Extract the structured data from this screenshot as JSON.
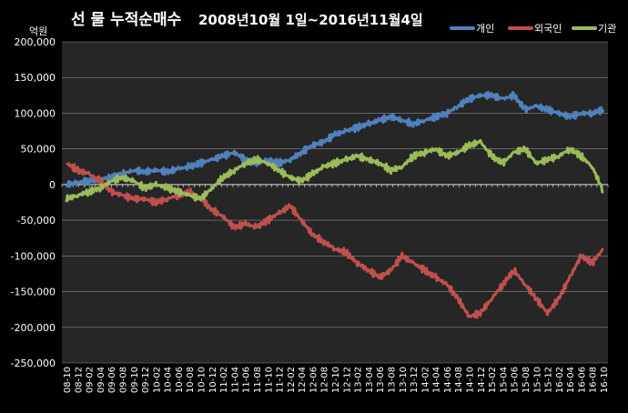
{
  "chart_data": {
    "type": "line",
    "title": "선 물 누적순매수",
    "subtitle": "2008년10월 1일~2016년11월4일",
    "unit_label": "억원",
    "ylim": [
      -250000,
      200000
    ],
    "y_ticks": [
      200000,
      150000,
      100000,
      50000,
      0,
      -50000,
      -100000,
      -150000,
      -200000,
      -250000
    ],
    "y_tick_labels": [
      "200,000",
      "150,000",
      "100,000",
      "50,000",
      "0",
      "-50,000",
      "-100,000",
      "-150,000",
      "-200,000",
      "-250,000"
    ],
    "grid": "horizontal",
    "legend_position": "top-right",
    "categories": [
      "08-10",
      "08-12",
      "09-02",
      "09-04",
      "09-06",
      "09-08",
      "09-10",
      "09-12",
      "10-02",
      "10-04",
      "10-06",
      "10-08",
      "10-10",
      "10-12",
      "11-02",
      "11-04",
      "11-06",
      "11-08",
      "11-10",
      "11-12",
      "12-02",
      "12-04",
      "12-06",
      "12-08",
      "12-10",
      "12-12",
      "13-02",
      "13-04",
      "13-06",
      "13-08",
      "13-10",
      "13-12",
      "14-02",
      "14-04",
      "14-06",
      "14-08",
      "14-10",
      "14-12",
      "15-02",
      "15-04",
      "15-06",
      "15-08",
      "15-10",
      "15-12",
      "16-02",
      "16-04",
      "16-06",
      "16-08",
      "16-10"
    ],
    "series": [
      {
        "name": "개인",
        "color": "#4F81BD",
        "values": [
          0,
          3000,
          5000,
          8000,
          10000,
          15000,
          20000,
          18000,
          20000,
          18000,
          22000,
          25000,
          30000,
          35000,
          40000,
          45000,
          35000,
          30000,
          35000,
          30000,
          35000,
          45000,
          55000,
          60000,
          70000,
          75000,
          80000,
          85000,
          90000,
          95000,
          90000,
          85000,
          90000,
          95000,
          100000,
          110000,
          120000,
          125000,
          125000,
          120000,
          125000,
          105000,
          110000,
          105000,
          100000,
          95000,
          100000,
          100000,
          105000
        ]
      },
      {
        "name": "외국인",
        "color": "#C0504D",
        "values": [
          30000,
          20000,
          15000,
          5000,
          -10000,
          -15000,
          -20000,
          -20000,
          -25000,
          -20000,
          -15000,
          -10000,
          -20000,
          -35000,
          -45000,
          -60000,
          -55000,
          -60000,
          -50000,
          -40000,
          -30000,
          -50000,
          -70000,
          -80000,
          -90000,
          -95000,
          -110000,
          -120000,
          -130000,
          -120000,
          -100000,
          -110000,
          -120000,
          -130000,
          -140000,
          -160000,
          -185000,
          -180000,
          -160000,
          -140000,
          -120000,
          -140000,
          -160000,
          -180000,
          -160000,
          -130000,
          -100000,
          -110000,
          -90000
        ]
      },
      {
        "name": "기관",
        "color": "#9BBB59",
        "values": [
          -20000,
          -15000,
          -10000,
          -5000,
          5000,
          10000,
          5000,
          -5000,
          0,
          -5000,
          -10000,
          -15000,
          -20000,
          -5000,
          10000,
          20000,
          30000,
          35000,
          30000,
          20000,
          10000,
          5000,
          15000,
          25000,
          30000,
          35000,
          40000,
          35000,
          30000,
          20000,
          25000,
          40000,
          45000,
          50000,
          40000,
          45000,
          55000,
          60000,
          40000,
          30000,
          45000,
          50000,
          30000,
          35000,
          40000,
          50000,
          40000,
          25000,
          -10000
        ]
      }
    ]
  }
}
